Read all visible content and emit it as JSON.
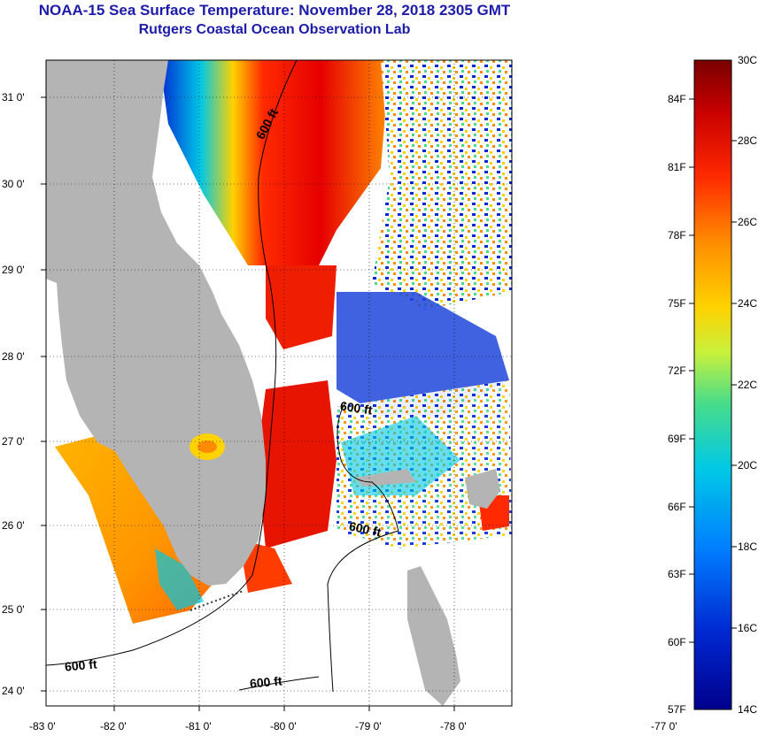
{
  "header": {
    "title": "NOAA-15 Sea Surface Temperature:  November 28, 2018 2305 GMT",
    "subtitle": "Rutgers Coastal Ocean Observation Lab"
  },
  "map": {
    "longitude_labels": [
      "-83 0'",
      "-82 0'",
      "-81 0'",
      "-80 0'",
      "-79 0'",
      "-78 0'",
      "-77 0'"
    ],
    "latitude_labels": [
      "31 0'",
      "30 0'",
      "29 0'",
      "28 0'",
      "27 0'",
      "26 0'",
      "25 0'",
      "24 0'"
    ],
    "contour_labels": [
      "600 ft",
      "600 ft",
      "600 ft",
      "600 ft",
      "600 ft"
    ]
  },
  "colorbar": {
    "celsius_labels": [
      "30C",
      "28C",
      "26C",
      "24C",
      "22C",
      "20C",
      "18C",
      "16C",
      "14C"
    ],
    "fahrenheit_labels": [
      "84F",
      "81F",
      "78F",
      "75F",
      "72F",
      "69F",
      "66F",
      "63F",
      "60F",
      "57F"
    ],
    "colors": [
      "#7a0000",
      "#c80000",
      "#ff2a00",
      "#ff8c00",
      "#ffd200",
      "#c8f03c",
      "#46dc8c",
      "#00c8e6",
      "#0080ff",
      "#0028d2",
      "#00008c"
    ]
  },
  "colors": {
    "land": "#b4b4b4",
    "title": "#1c1ca8"
  }
}
